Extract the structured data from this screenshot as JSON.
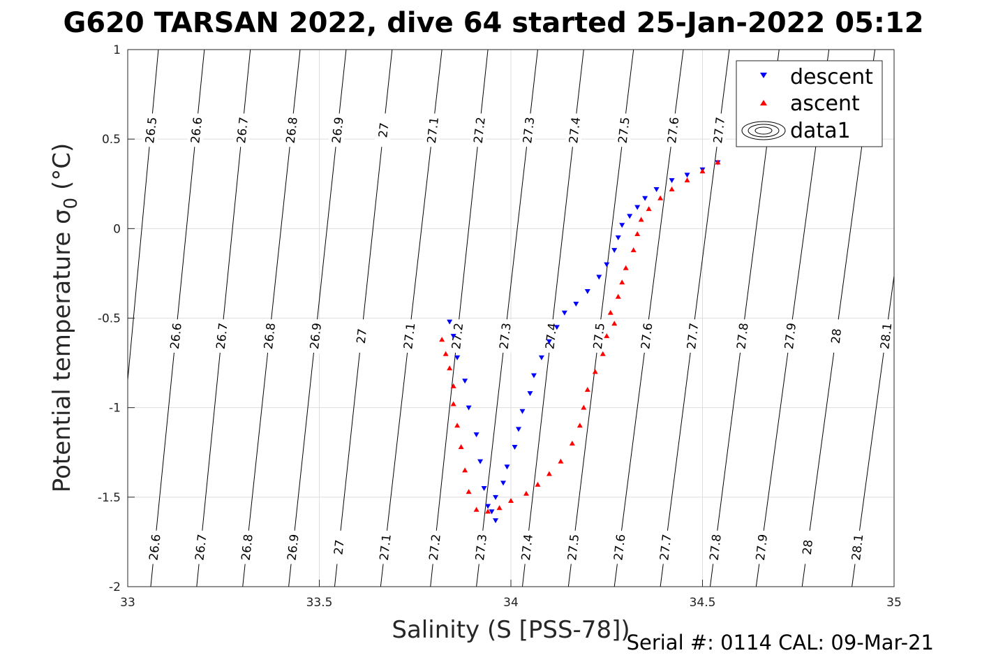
{
  "chart_data": {
    "type": "scatter",
    "title": "G620 TARSAN 2022, dive 64 started 25-Jan-2022 05:12",
    "xlabel": "Salinity (S [PSS-78])",
    "ylabel": "Potential temperature σ_0 (°C)",
    "xlim": [
      33,
      35
    ],
    "ylim": [
      -2,
      1
    ],
    "xticks": [
      33,
      33.5,
      34,
      34.5,
      35
    ],
    "yticks": [
      1,
      0.5,
      0,
      -0.5,
      -1,
      -1.5,
      -2
    ],
    "xtick_labels": [
      "33",
      "33.5",
      "34",
      "34.5",
      "35"
    ],
    "ytick_labels": [
      "1",
      "0.5",
      "0",
      "-0.5",
      "-1",
      "-1.5",
      "-2"
    ],
    "grid": true,
    "legend_position": "top-right",
    "legend": [
      {
        "label": "descent",
        "marker": "triangle-down",
        "color": "#0000ff"
      },
      {
        "label": "ascent",
        "marker": "triangle-up",
        "color": "#ff0000"
      },
      {
        "label": "data1",
        "marker": "contour",
        "color": "#000000"
      }
    ],
    "isopycnals": {
      "x_at_top": [
        33.08,
        33.2,
        33.32,
        33.45,
        33.57,
        33.69,
        33.82,
        33.94,
        34.07,
        34.19,
        34.32,
        34.45,
        34.57,
        34.7,
        34.83,
        34.95,
        35.08
      ],
      "x_at_bottom": [
        32.95,
        33.06,
        33.18,
        33.3,
        33.42,
        33.54,
        33.66,
        33.79,
        33.91,
        34.03,
        34.15,
        34.27,
        34.39,
        34.52,
        34.64,
        34.76,
        34.89
      ],
      "values": [
        "26.5",
        "26.6",
        "26.7",
        "26.8",
        "26.9",
        "27",
        "27.1",
        "27.2",
        "27.3",
        "27.4",
        "27.5",
        "27.6",
        "27.7",
        "27.8",
        "27.9",
        "28",
        "28.1"
      ],
      "labels_row1": [
        "26.5",
        "26.6",
        "26.7",
        "26.8",
        "26.9",
        "27",
        "27.1",
        "27.2",
        "27.3",
        "27.4",
        "27.5",
        "27.6",
        "27.7"
      ],
      "labels_row2": [
        "26.6",
        "26.7",
        "26.8",
        "26.9",
        "27",
        "27.1",
        "27.2",
        "27.3",
        "27.4",
        "27.5",
        "27.6",
        "27.7",
        "27.8",
        "27.9",
        "28",
        "28.1"
      ],
      "labels_row3": [
        "26.6",
        "26.7",
        "26.8",
        "26.9",
        "27",
        "27.1",
        "27.2",
        "27.3",
        "27.4",
        "27.5",
        "27.6",
        "27.7",
        "27.8",
        "27.9",
        "28",
        "28.1"
      ]
    },
    "series": [
      {
        "name": "descent",
        "color": "#0000ff",
        "marker": "triangle-down",
        "points": [
          [
            34.54,
            0.37
          ],
          [
            34.5,
            0.33
          ],
          [
            34.46,
            0.3
          ],
          [
            34.42,
            0.27
          ],
          [
            34.38,
            0.22
          ],
          [
            34.35,
            0.17
          ],
          [
            34.33,
            0.12
          ],
          [
            34.31,
            0.07
          ],
          [
            34.29,
            0.02
          ],
          [
            34.28,
            -0.05
          ],
          [
            34.27,
            -0.12
          ],
          [
            34.25,
            -0.2
          ],
          [
            34.23,
            -0.27
          ],
          [
            34.2,
            -0.35
          ],
          [
            34.17,
            -0.42
          ],
          [
            34.14,
            -0.47
          ],
          [
            34.12,
            -0.55
          ],
          [
            34.1,
            -0.63
          ],
          [
            34.08,
            -0.72
          ],
          [
            34.06,
            -0.82
          ],
          [
            34.05,
            -0.92
          ],
          [
            34.03,
            -1.02
          ],
          [
            34.02,
            -1.12
          ],
          [
            34.01,
            -1.22
          ],
          [
            33.99,
            -1.33
          ],
          [
            33.98,
            -1.42
          ],
          [
            33.96,
            -1.5
          ],
          [
            33.95,
            -1.58
          ],
          [
            33.96,
            -1.63
          ],
          [
            33.94,
            -1.55
          ],
          [
            33.93,
            -1.45
          ],
          [
            33.92,
            -1.3
          ],
          [
            33.91,
            -1.15
          ],
          [
            33.89,
            -1.0
          ],
          [
            33.88,
            -0.85
          ],
          [
            33.86,
            -0.72
          ],
          [
            33.85,
            -0.6
          ],
          [
            33.84,
            -0.52
          ]
        ]
      },
      {
        "name": "ascent",
        "color": "#ff0000",
        "marker": "triangle-up",
        "points": [
          [
            34.54,
            0.37
          ],
          [
            34.5,
            0.32
          ],
          [
            34.46,
            0.27
          ],
          [
            34.42,
            0.22
          ],
          [
            34.39,
            0.17
          ],
          [
            34.36,
            0.11
          ],
          [
            34.34,
            0.05
          ],
          [
            34.33,
            -0.03
          ],
          [
            34.32,
            -0.12
          ],
          [
            34.3,
            -0.22
          ],
          [
            34.29,
            -0.3
          ],
          [
            34.28,
            -0.38
          ],
          [
            34.26,
            -0.47
          ],
          [
            34.27,
            -0.53
          ],
          [
            34.25,
            -0.6
          ],
          [
            34.24,
            -0.7
          ],
          [
            34.22,
            -0.8
          ],
          [
            34.2,
            -0.9
          ],
          [
            34.19,
            -1.0
          ],
          [
            34.18,
            -1.1
          ],
          [
            34.16,
            -1.2
          ],
          [
            34.13,
            -1.3
          ],
          [
            34.1,
            -1.37
          ],
          [
            34.07,
            -1.43
          ],
          [
            34.04,
            -1.48
          ],
          [
            34.0,
            -1.52
          ],
          [
            33.97,
            -1.56
          ],
          [
            33.94,
            -1.58
          ],
          [
            33.91,
            -1.57
          ],
          [
            33.89,
            -1.47
          ],
          [
            33.88,
            -1.35
          ],
          [
            33.87,
            -1.22
          ],
          [
            33.86,
            -1.1
          ],
          [
            33.85,
            -0.98
          ],
          [
            33.85,
            -0.88
          ],
          [
            33.84,
            -0.78
          ],
          [
            33.83,
            -0.7
          ],
          [
            33.82,
            -0.62
          ]
        ]
      }
    ]
  },
  "footer": {
    "serial": "Serial #: 0114  CAL: 09-Mar-21"
  }
}
